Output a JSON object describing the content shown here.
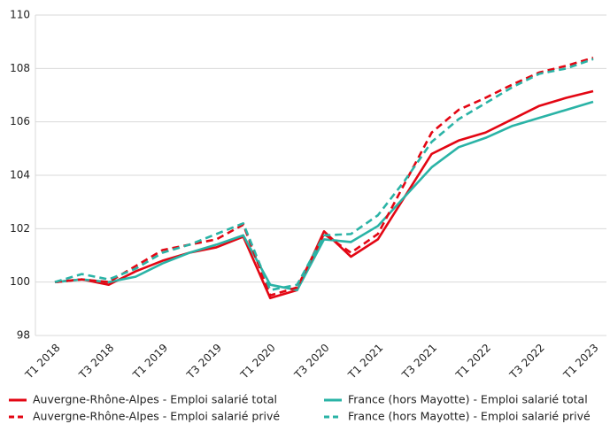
{
  "chart_data": {
    "type": "line",
    "categories": [
      "T1 2018",
      null,
      "T3 2018",
      null,
      "T1 2019",
      null,
      "T3 2019",
      null,
      "T1 2020",
      null,
      "T3 2020",
      null,
      "T1 2021",
      null,
      "T3 2021",
      null,
      "T1 2022",
      null,
      "T3 2022",
      null,
      "T1 2023"
    ],
    "series": [
      {
        "name": "Auvergne-Rhône-Alpes - Emploi salarié total",
        "color": "#e30613",
        "style": "solid",
        "values": [
          100.0,
          100.1,
          99.9,
          100.4,
          100.8,
          101.1,
          101.3,
          101.7,
          99.4,
          99.7,
          101.9,
          100.95,
          101.6,
          103.2,
          104.8,
          105.3,
          105.6,
          106.1,
          106.6,
          106.9,
          107.15
        ]
      },
      {
        "name": "France (hors Mayotte) - Emploi salarié total",
        "color": "#2ab3a6",
        "style": "solid",
        "values": [
          100.0,
          100.1,
          100.0,
          100.2,
          100.7,
          101.1,
          101.4,
          101.75,
          99.9,
          99.7,
          101.6,
          101.5,
          102.1,
          103.2,
          104.3,
          105.05,
          105.4,
          105.85,
          106.15,
          106.45,
          106.75
        ]
      },
      {
        "name": "Auvergne-Rhône-Alpes - Emploi salarié privé",
        "color": "#e30613",
        "style": "dashed",
        "values": [
          100.0,
          100.1,
          100.0,
          100.6,
          101.2,
          101.4,
          101.6,
          102.15,
          99.5,
          99.8,
          101.8,
          101.1,
          101.8,
          103.7,
          105.6,
          106.45,
          106.9,
          107.4,
          107.85,
          108.1,
          108.4
        ]
      },
      {
        "name": "France (hors Mayotte) - Emploi salarié privé",
        "color": "#2ab3a6",
        "style": "dashed",
        "values": [
          100.0,
          100.3,
          100.1,
          100.5,
          101.1,
          101.4,
          101.8,
          102.2,
          99.7,
          99.9,
          101.75,
          101.8,
          102.5,
          103.8,
          105.25,
          106.1,
          106.7,
          107.3,
          107.8,
          108.0,
          108.35
        ]
      }
    ],
    "ylim": [
      98,
      110
    ],
    "yticks": [
      98,
      100,
      102,
      104,
      106,
      108,
      110
    ],
    "grid": true,
    "legend": "bottom"
  }
}
